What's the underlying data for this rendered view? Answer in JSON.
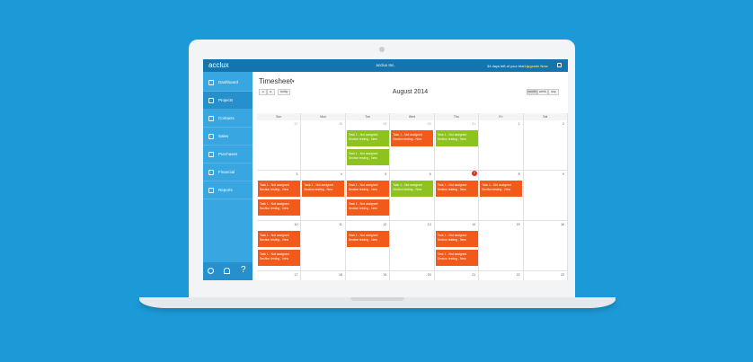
{
  "header": {
    "logo": "acclux",
    "company": "acclux Inc.",
    "trial": "34 days left of your trial",
    "upgrade": "Upgrade Now"
  },
  "sidebar": {
    "items": [
      "Dashboard",
      "Projects",
      "Contacts",
      "Sales",
      "Purchases",
      "Financial",
      "Reports"
    ],
    "selected": 1,
    "help": "?"
  },
  "page": {
    "title": "Timesheet",
    "today": "today",
    "views": [
      "month",
      "week",
      "day"
    ],
    "active_view": 0,
    "month_title": "August 2014"
  },
  "calendar": {
    "weekdays": [
      "Sun",
      "Mon",
      "Tue",
      "Wed",
      "Thu",
      "Fri",
      "Sat"
    ],
    "weeks": [
      [
        27,
        28,
        29,
        30,
        31,
        1,
        2
      ],
      [
        3,
        4,
        5,
        6,
        7,
        8,
        9
      ],
      [
        10,
        11,
        12,
        13,
        14,
        15,
        16
      ],
      [
        17,
        18,
        19,
        20,
        21,
        22,
        23
      ]
    ],
    "today": [
      1,
      4
    ],
    "status_colors": {
      "done": "#8dc21f",
      "open": "#f15a1b"
    },
    "events": [
      {
        "week": 0,
        "day": 2,
        "slot": 0,
        "status": "done",
        "title": "Task 1 - Not assigned",
        "subtitle": "Section testing - New"
      },
      {
        "week": 0,
        "day": 2,
        "slot": 1,
        "status": "done",
        "title": "Task 1 - Not assigned",
        "subtitle": "Section testing - New"
      },
      {
        "week": 0,
        "day": 3,
        "slot": 0,
        "status": "open",
        "title": "Task 1 - Not assigned",
        "subtitle": "Section testing - New"
      },
      {
        "week": 0,
        "day": 4,
        "slot": 0,
        "status": "done",
        "title": "Task 1 - Not assigned",
        "subtitle": "Section testing - New"
      },
      {
        "week": 1,
        "day": 0,
        "slot": 0,
        "status": "open",
        "title": "Task 1 - Not assigned",
        "subtitle": "Section testing - New"
      },
      {
        "week": 1,
        "day": 0,
        "slot": 1,
        "status": "open",
        "title": "Task 1 - Not assigned",
        "subtitle": "Section testing - New"
      },
      {
        "week": 1,
        "day": 1,
        "slot": 0,
        "status": "open",
        "title": "Task 1 - Not assigned",
        "subtitle": "Section testing - New"
      },
      {
        "week": 1,
        "day": 2,
        "slot": 0,
        "status": "open",
        "title": "Task 1 - Not assigned",
        "subtitle": "Section testing - New"
      },
      {
        "week": 1,
        "day": 2,
        "slot": 1,
        "status": "open",
        "title": "Task 1 - Not assigned",
        "subtitle": "Section testing - New"
      },
      {
        "week": 1,
        "day": 3,
        "slot": 0,
        "status": "done",
        "title": "Task 1 - Not assigned",
        "subtitle": "Section testing - New"
      },
      {
        "week": 1,
        "day": 4,
        "slot": 0,
        "status": "open",
        "title": "Task 1 - Not assigned",
        "subtitle": "Section testing - New"
      },
      {
        "week": 1,
        "day": 5,
        "slot": 0,
        "status": "open",
        "title": "Task 1 - Not assigned",
        "subtitle": "Section testing - New"
      },
      {
        "week": 2,
        "day": 0,
        "slot": 0,
        "status": "open",
        "title": "Task 1 - Not assigned",
        "subtitle": "Section testing - New"
      },
      {
        "week": 2,
        "day": 0,
        "slot": 1,
        "status": "open",
        "title": "Task 1 - Not assigned",
        "subtitle": "Section testing - New"
      },
      {
        "week": 2,
        "day": 2,
        "slot": 0,
        "status": "open",
        "title": "Task 1 - Not assigned",
        "subtitle": "Section testing - New"
      },
      {
        "week": 2,
        "day": 4,
        "slot": 0,
        "status": "open",
        "title": "Task 1 - Not assigned",
        "subtitle": "Section testing - New"
      },
      {
        "week": 2,
        "day": 4,
        "slot": 1,
        "status": "open",
        "title": "Task 1 - Not assigned",
        "subtitle": "Section testing - New"
      }
    ]
  }
}
